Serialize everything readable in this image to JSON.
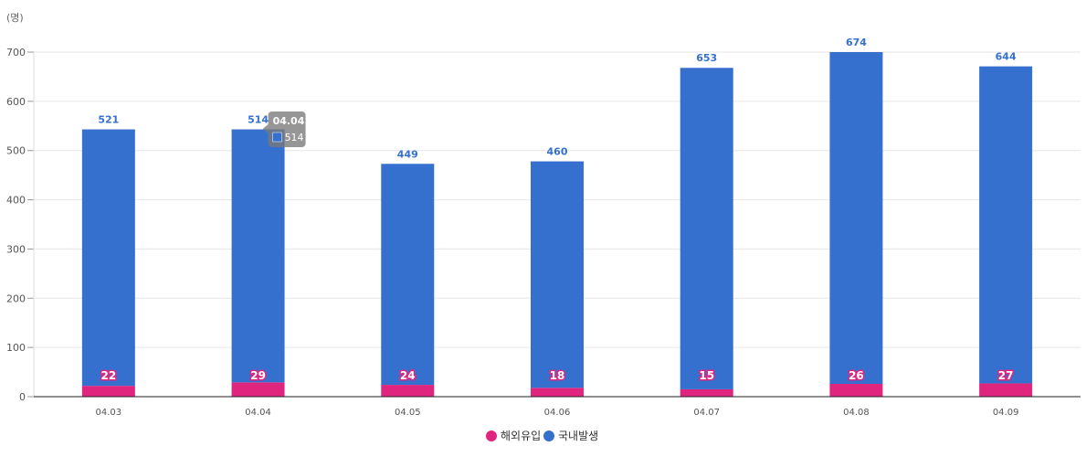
{
  "chart_data": {
    "type": "bar",
    "stacked": true,
    "unit": "(명)",
    "categories": [
      "04.03",
      "04.04",
      "04.05",
      "04.06",
      "04.07",
      "04.08",
      "04.09"
    ],
    "series": [
      {
        "name": "해외유입",
        "color": "#e0257f",
        "values": [
          22,
          29,
          24,
          18,
          15,
          26,
          27
        ]
      },
      {
        "name": "국내발생",
        "color": "#3570cf",
        "values": [
          521,
          514,
          449,
          460,
          653,
          674,
          644
        ]
      }
    ],
    "ylim": [
      0,
      700
    ],
    "yticks": [
      0,
      100,
      200,
      300,
      400,
      500,
      600,
      700
    ],
    "grid": true,
    "legend": "bottom-center",
    "tooltip": {
      "category": "04.04",
      "value": "514"
    }
  }
}
